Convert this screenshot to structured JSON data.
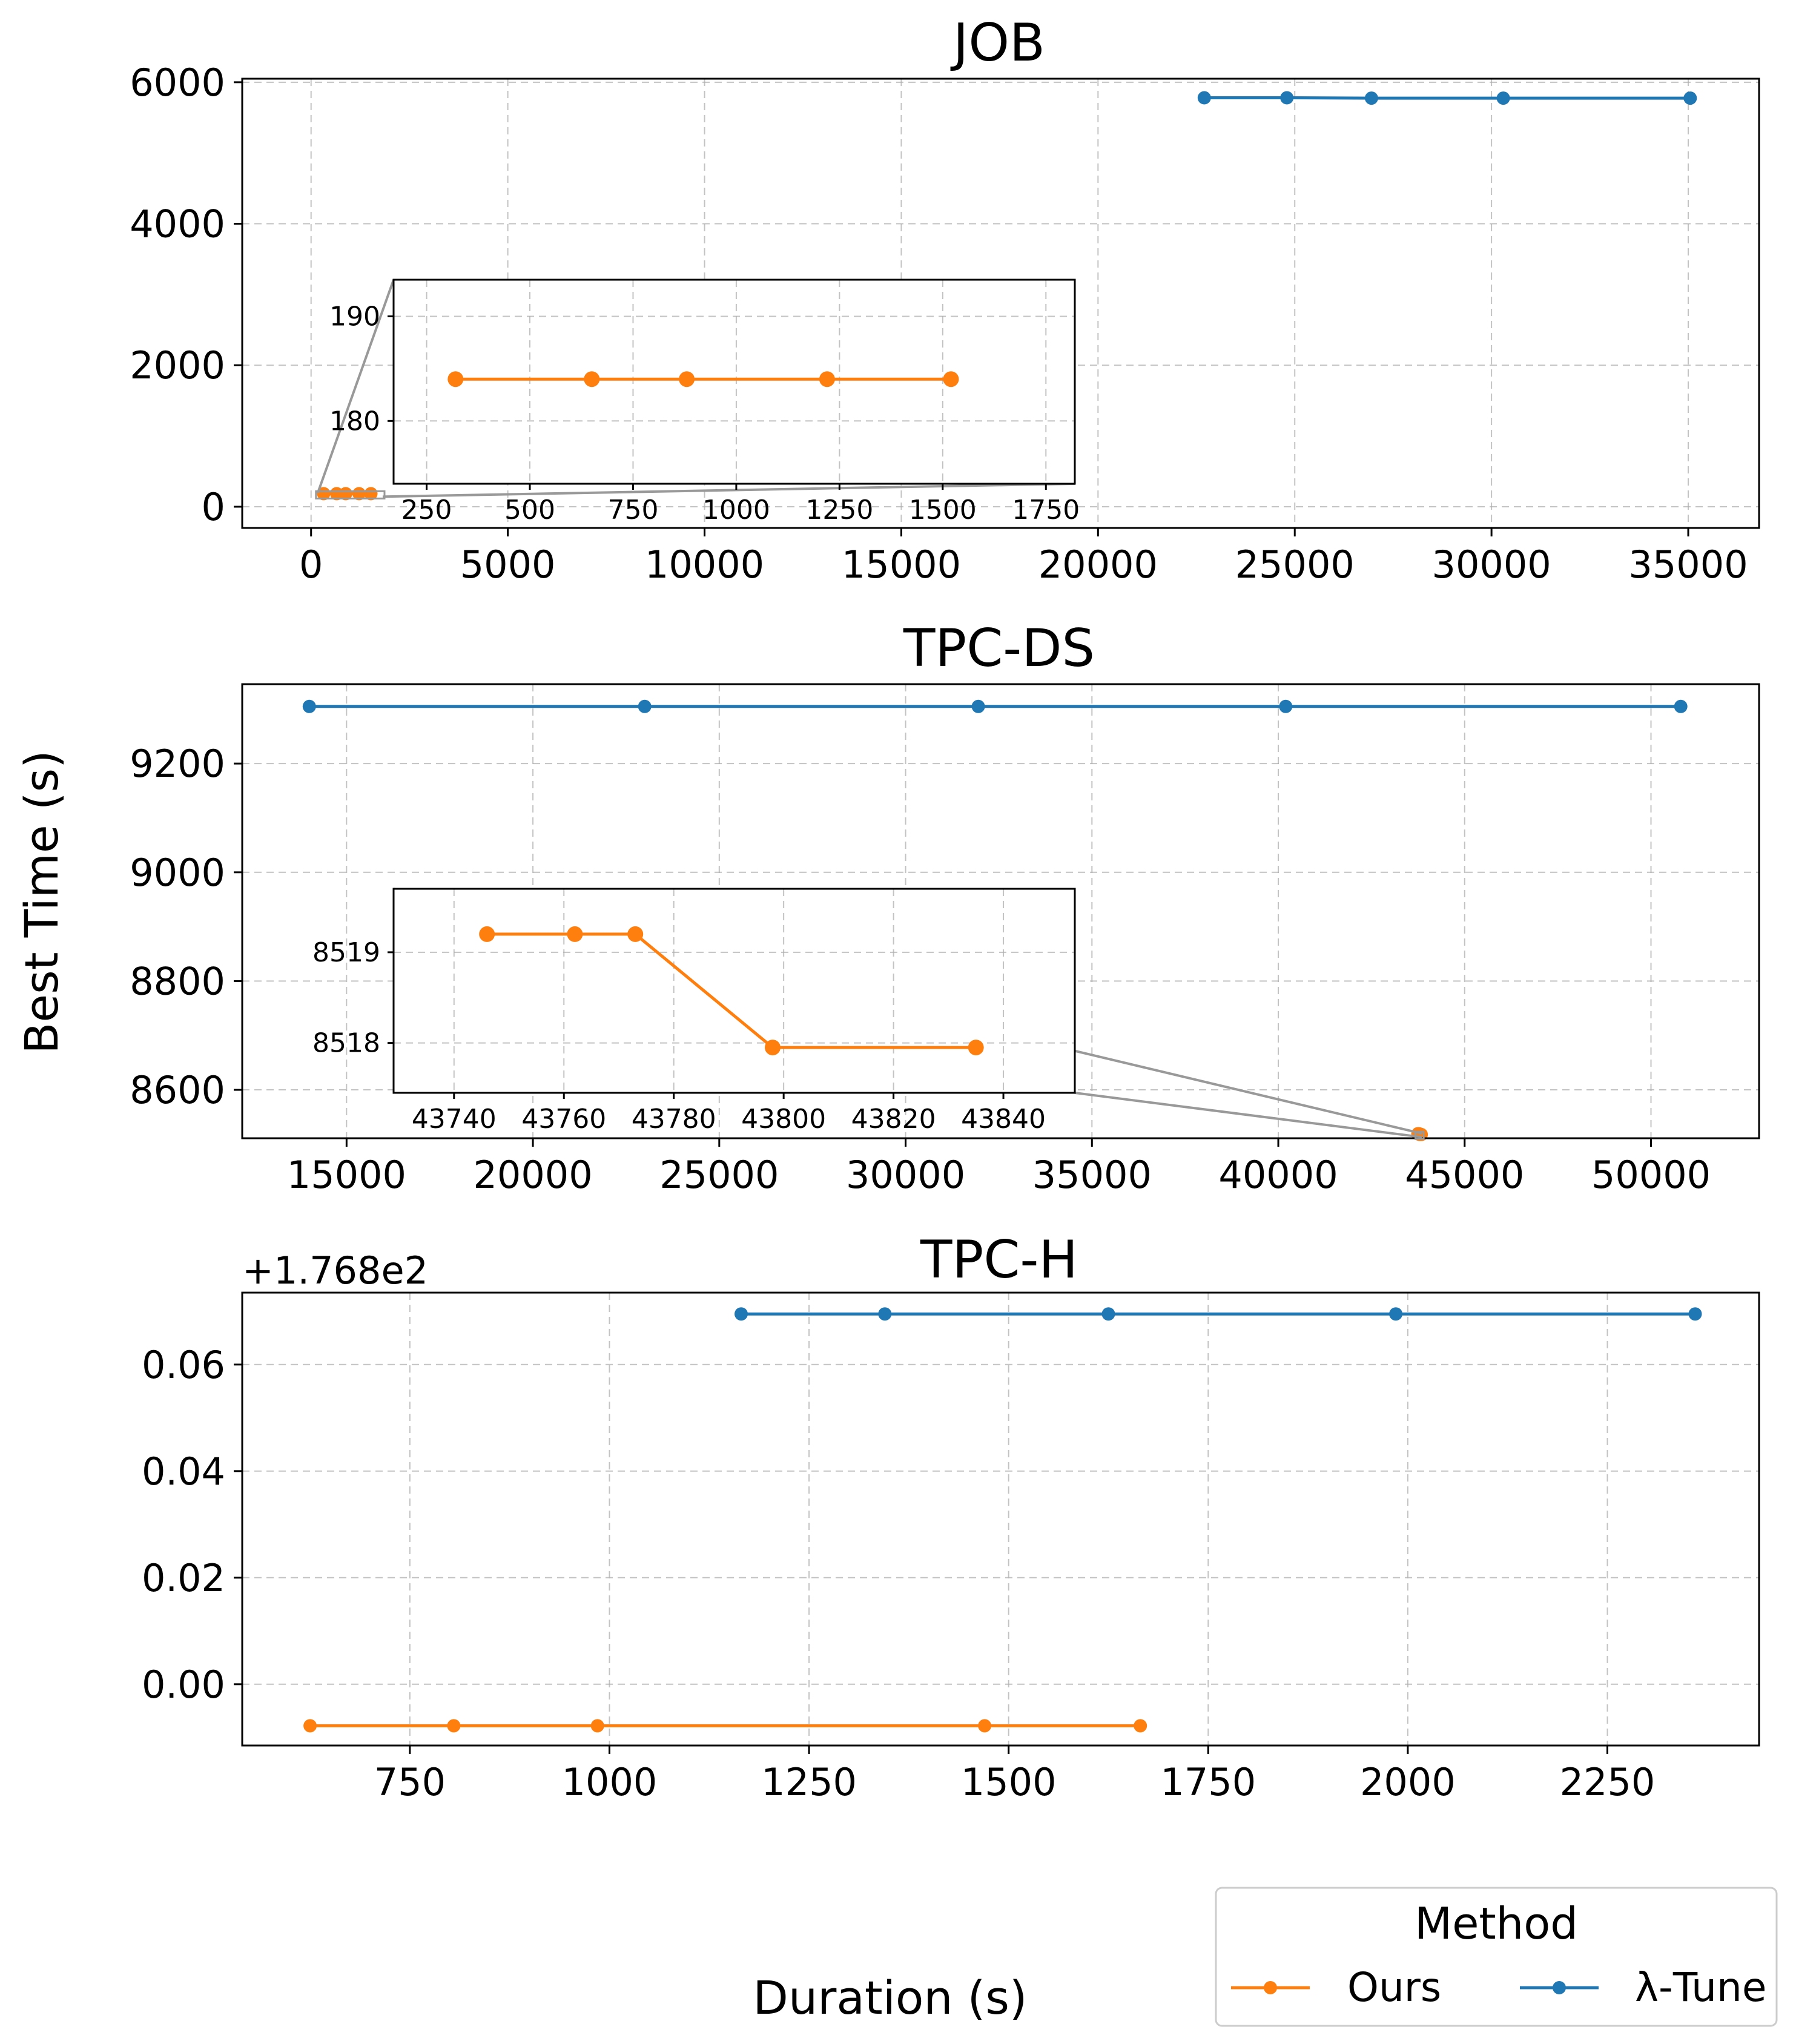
{
  "figure": {
    "xlabel": "Duration (s)",
    "ylabel": "Best Time (s)",
    "legend": {
      "title": "Method",
      "placement": "bottom-right",
      "entries": [
        {
          "label": "Ours",
          "color": "#ff7f0e"
        },
        {
          "label": "λ-Tune",
          "color": "#1f77b4"
        }
      ]
    }
  },
  "chart_data": [
    {
      "type": "line",
      "title": "JOB",
      "xlim": [
        -1750,
        36800
      ],
      "ylim": [
        -300,
        6050
      ],
      "xticks": [
        0,
        5000,
        10000,
        15000,
        20000,
        25000,
        30000,
        35000
      ],
      "xtick_labels": [
        "0",
        "5000",
        "10000",
        "15000",
        "20000",
        "25000",
        "30000",
        "35000"
      ],
      "yticks": [
        0,
        2000,
        4000,
        6000
      ],
      "ytick_labels": [
        "0",
        "2000",
        "4000",
        "6000"
      ],
      "grid": true,
      "series": [
        {
          "name": "Ours",
          "color": "#ff7f0e",
          "x": [
            320,
            650,
            880,
            1220,
            1520
          ],
          "y": [
            184,
            184,
            184,
            184,
            184
          ]
        },
        {
          "name": "λ-Tune",
          "color": "#1f77b4",
          "x": [
            22700,
            24800,
            26950,
            30300,
            35050
          ],
          "y": [
            5780,
            5780,
            5775,
            5775,
            5775
          ]
        }
      ],
      "inset": {
        "series": "Ours",
        "xlim": [
          170,
          1820
        ],
        "ylim": [
          174,
          193.5
        ],
        "xticks": [
          250,
          500,
          750,
          1000,
          1250,
          1500,
          1750
        ],
        "xtick_labels": [
          "250",
          "500",
          "750",
          "1000",
          "1250",
          "1500",
          "1750"
        ],
        "yticks": [
          180,
          190
        ],
        "ytick_labels": [
          "180",
          "190"
        ]
      }
    },
    {
      "type": "line",
      "title": "TPC-DS",
      "xlim": [
        12200,
        52900
      ],
      "ylim": [
        8511,
        9346
      ],
      "xticks": [
        15000,
        20000,
        25000,
        30000,
        35000,
        40000,
        45000,
        50000
      ],
      "xtick_labels": [
        "15000",
        "20000",
        "25000",
        "30000",
        "35000",
        "40000",
        "45000",
        "50000"
      ],
      "yticks": [
        8600,
        8800,
        9000,
        9200
      ],
      "ytick_labels": [
        "8600",
        "8800",
        "9000",
        "9200"
      ],
      "grid": true,
      "series": [
        {
          "name": "Ours",
          "color": "#ff7f0e",
          "x": [
            43746,
            43762,
            43773,
            43798,
            43835
          ],
          "y": [
            8519.2,
            8519.2,
            8519.2,
            8517.95,
            8517.95
          ]
        },
        {
          "name": "λ-Tune",
          "color": "#1f77b4",
          "x": [
            14000,
            23000,
            31950,
            40200,
            50800
          ],
          "y": [
            9305,
            9305,
            9305,
            9305,
            9305
          ]
        }
      ],
      "inset": {
        "series": "Ours",
        "xlim": [
          43729,
          43853
        ],
        "ylim": [
          8517.45,
          8519.7
        ],
        "xticks": [
          43740,
          43760,
          43780,
          43800,
          43820,
          43840
        ],
        "xtick_labels": [
          "43740",
          "43760",
          "43780",
          "43800",
          "43820",
          "43840"
        ],
        "yticks": [
          8518,
          8519
        ],
        "ytick_labels": [
          "8518",
          "8519"
        ]
      }
    },
    {
      "type": "line",
      "title": "TPC-H",
      "offset_label": "+1.768e2",
      "xlim": [
        540,
        2440
      ],
      "ylim": [
        -0.0115,
        0.0735
      ],
      "xticks": [
        750,
        1000,
        1250,
        1500,
        1750,
        2000,
        2250
      ],
      "xtick_labels": [
        "750",
        "1000",
        "1250",
        "1500",
        "1750",
        "2000",
        "2250"
      ],
      "yticks": [
        0.0,
        0.02,
        0.04,
        0.06
      ],
      "ytick_labels": [
        "0.00",
        "0.02",
        "0.04",
        "0.06"
      ],
      "grid": true,
      "series": [
        {
          "name": "Ours",
          "color": "#ff7f0e",
          "x": [
            625,
            805,
            985,
            1470,
            1665
          ],
          "y": [
            -0.0078,
            -0.0078,
            -0.0078,
            -0.0078,
            -0.0078
          ]
        },
        {
          "name": "λ-Tune",
          "color": "#1f77b4",
          "x": [
            1165,
            1345,
            1625,
            1985,
            2360
          ],
          "y": [
            0.0695,
            0.0695,
            0.0695,
            0.0695,
            0.0695
          ]
        }
      ]
    }
  ]
}
